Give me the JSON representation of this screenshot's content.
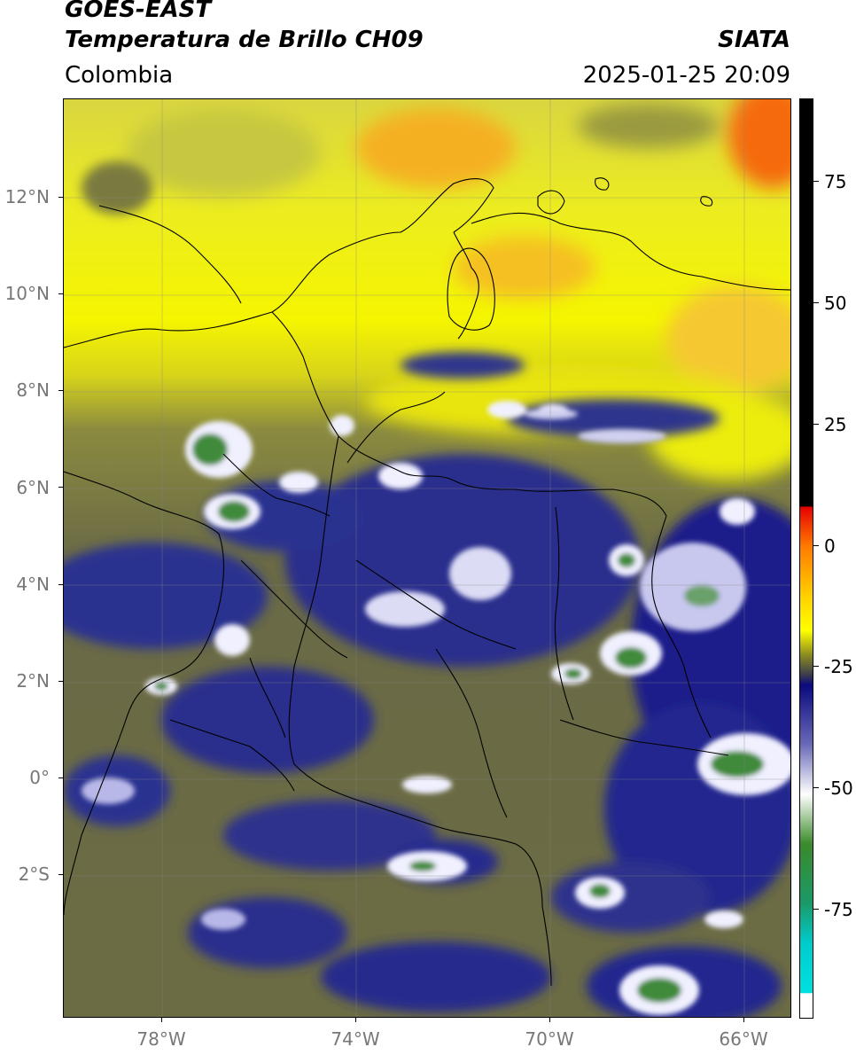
{
  "header": {
    "satellite": "GOES-EAST",
    "product": "Temperatura de Brillo CH09",
    "region": "Colombia",
    "source": "SIATA",
    "datetime": "2025-01-25 20:09"
  },
  "map": {
    "lat_labels": [
      "12°N",
      "10°N",
      "8°N",
      "6°N",
      "4°N",
      "2°N",
      "0°",
      "2°S"
    ],
    "lon_labels": [
      "78°W",
      "74°W",
      "70°W",
      "66°W"
    ],
    "gridlines": true,
    "colors": {
      "warm_yellow": "#f2f200",
      "warm_orange": "#f5a020",
      "olive": "#6a6a3c",
      "cold_navy": "#1a1f8a",
      "cold_white": "#f4f4ff",
      "cold_green": "#3f8a3a",
      "coastline": "#000000"
    }
  },
  "colorbar": {
    "tick_labels": [
      "75",
      "50",
      "25",
      "0",
      "-25",
      "-50",
      "-75"
    ],
    "stops": [
      {
        "value": 90,
        "color": "#000000"
      },
      {
        "value": 8,
        "color": "#000000"
      },
      {
        "value": 7.9,
        "color": "#e60000"
      },
      {
        "value": 0,
        "color": "#ff7a00"
      },
      {
        "value": -10,
        "color": "#ffd000"
      },
      {
        "value": -17,
        "color": "#ffff00"
      },
      {
        "value": -22,
        "color": "#8a8a20"
      },
      {
        "value": -26,
        "color": "#3a3a50"
      },
      {
        "value": -28,
        "color": "#0a0a80"
      },
      {
        "value": -40,
        "color": "#6a6ab8"
      },
      {
        "value": -50,
        "color": "#ffffff"
      },
      {
        "value": -60,
        "color": "#3a8a2a"
      },
      {
        "value": -72,
        "color": "#1a9a6a"
      },
      {
        "value": -80,
        "color": "#00cccc"
      },
      {
        "value": -90,
        "color": "#00e0e0"
      },
      {
        "value": -90.1,
        "color": "#ffffff"
      },
      {
        "value": -95,
        "color": "#ffffff"
      }
    ]
  }
}
